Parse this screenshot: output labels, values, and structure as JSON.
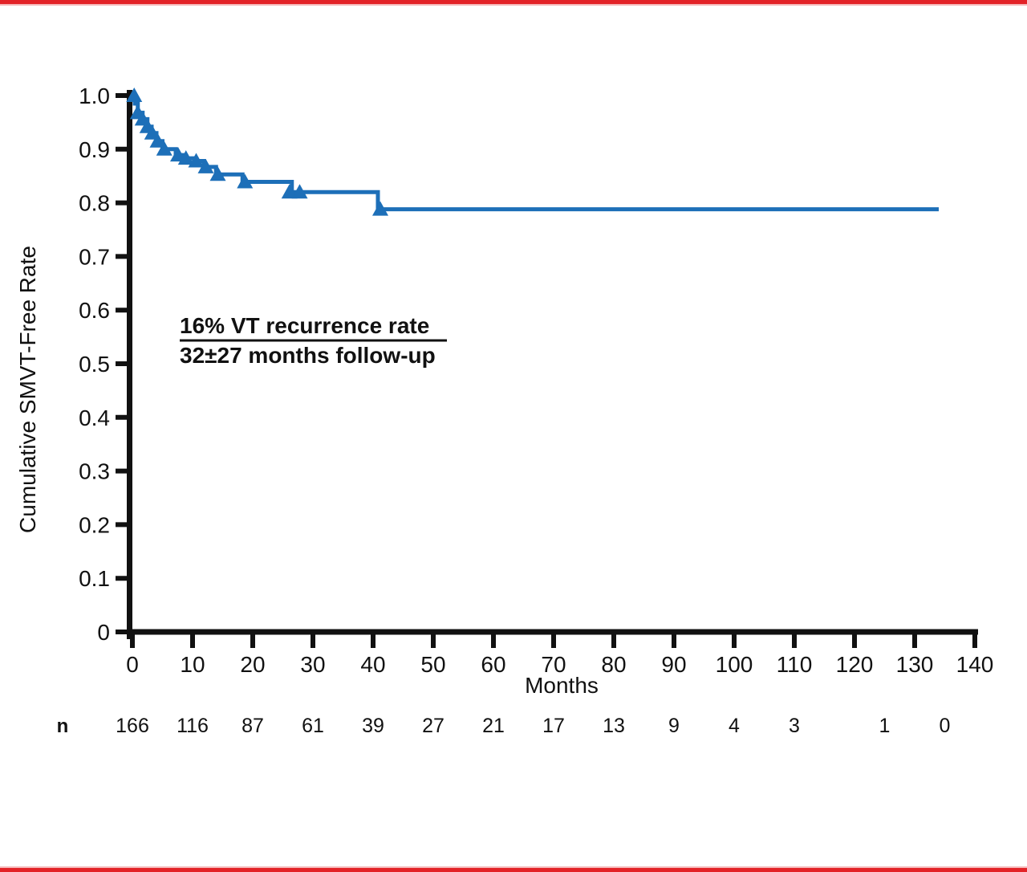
{
  "page": {
    "accent_rule_color": "#e32227",
    "accent_rule_light": "#f5b9ba",
    "background": "#ffffff"
  },
  "chart_data": {
    "type": "line",
    "chart_kind": "kaplan-meier-step",
    "title": "",
    "xlabel": "Months",
    "ylabel": "Cumulative SMVT-Free Rate",
    "xlim": [
      0,
      140
    ],
    "ylim": [
      0,
      1.0
    ],
    "grid": false,
    "legend": false,
    "x_ticks": [
      0,
      10,
      20,
      30,
      40,
      50,
      60,
      70,
      80,
      90,
      100,
      110,
      120,
      130,
      140
    ],
    "y_ticks": [
      {
        "v": 1.0,
        "label": "1.0"
      },
      {
        "v": 0.9,
        "label": "0.9"
      },
      {
        "v": 0.8,
        "label": "0.8"
      },
      {
        "v": 0.7,
        "label": "0.7"
      },
      {
        "v": 0.6,
        "label": "0.6"
      },
      {
        "v": 0.5,
        "label": "0.5"
      },
      {
        "v": 0.4,
        "label": "0.4"
      },
      {
        "v": 0.3,
        "label": "0.3"
      },
      {
        "v": 0.2,
        "label": "0.2"
      },
      {
        "v": 0.1,
        "label": "0.1"
      },
      {
        "v": 0.0,
        "label": "0"
      }
    ],
    "series": [
      {
        "name": "Cumulative SMVT-free rate",
        "color": "#1d6fb8",
        "step_points": [
          [
            0,
            1.0
          ],
          [
            0.4,
            0.985
          ],
          [
            0.9,
            0.968
          ],
          [
            1.7,
            0.956
          ],
          [
            2.5,
            0.942
          ],
          [
            3.2,
            0.93
          ],
          [
            4.0,
            0.915
          ],
          [
            5.0,
            0.9
          ],
          [
            7.2,
            0.889
          ],
          [
            8.6,
            0.883
          ],
          [
            10.3,
            0.878
          ],
          [
            11.9,
            0.867
          ],
          [
            13.9,
            0.853
          ],
          [
            18.3,
            0.839
          ],
          [
            26.5,
            0.82
          ],
          [
            40.8,
            0.788
          ],
          [
            134,
            0.788
          ]
        ]
      }
    ],
    "censor_marks": [
      [
        0.3,
        1.0
      ],
      [
        0.9,
        0.968
      ],
      [
        1.7,
        0.956
      ],
      [
        2.5,
        0.942
      ],
      [
        3.3,
        0.93
      ],
      [
        4.2,
        0.915
      ],
      [
        5.3,
        0.9
      ],
      [
        7.6,
        0.889
      ],
      [
        8.9,
        0.883
      ],
      [
        10.6,
        0.878
      ],
      [
        12.2,
        0.867
      ],
      [
        14.2,
        0.853
      ],
      [
        18.7,
        0.839
      ],
      [
        26.1,
        0.82
      ],
      [
        27.8,
        0.82
      ],
      [
        41.2,
        0.788
      ]
    ],
    "annotation": {
      "line1": "16% VT recurrence rate",
      "line2": "32±27 months follow-up"
    },
    "at_risk": {
      "label": "n",
      "entries": [
        {
          "month": 0,
          "n": "166"
        },
        {
          "month": 10,
          "n": "116"
        },
        {
          "month": 20,
          "n": "87"
        },
        {
          "month": 30,
          "n": "61"
        },
        {
          "month": 40,
          "n": "39"
        },
        {
          "month": 50,
          "n": "27"
        },
        {
          "month": 60,
          "n": "21"
        },
        {
          "month": 70,
          "n": "17"
        },
        {
          "month": 80,
          "n": "13"
        },
        {
          "month": 90,
          "n": "9"
        },
        {
          "month": 100,
          "n": "4"
        },
        {
          "month": 110,
          "n": "3"
        },
        {
          "month": 125,
          "n": "1"
        },
        {
          "month": 135,
          "n": "0"
        }
      ]
    },
    "colors": {
      "curve": "#1d6fb8",
      "axis": "#111111"
    }
  }
}
